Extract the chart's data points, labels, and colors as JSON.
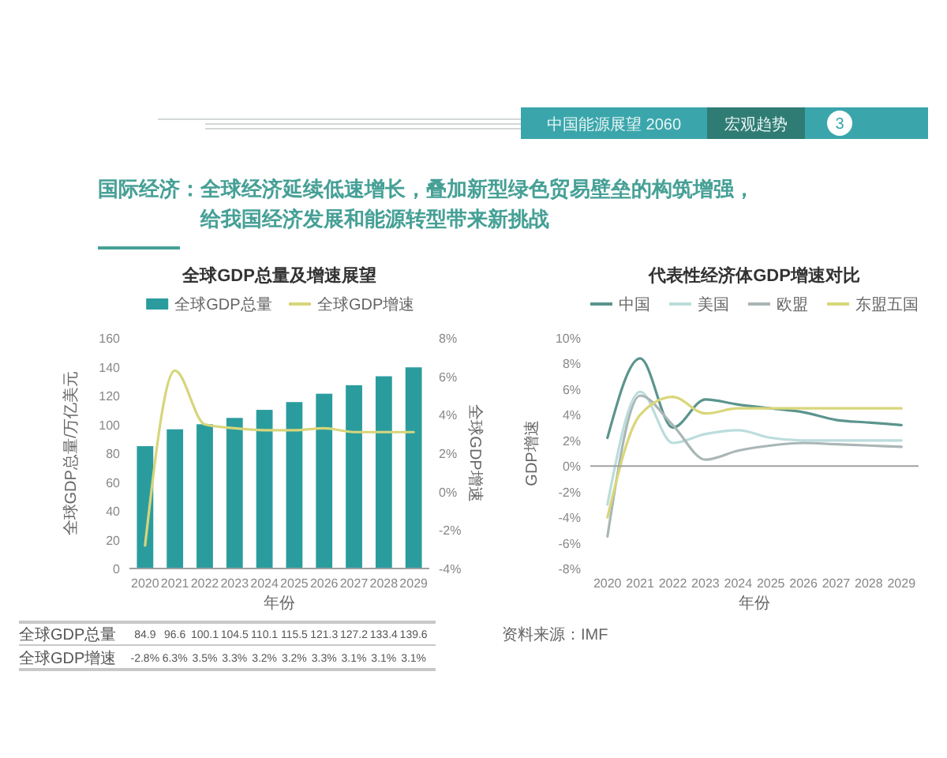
{
  "chart_data": [
    {
      "type": "other",
      "title": "国际经济：全球经济延续低速增长，叠加新型绿色贸易壁垒的构筑增强，给我国经济发展和能源转型带来新挑战",
      "annotations": [
        "中国能源展望 2060",
        "宏观趋势",
        "3"
      ]
    },
    {
      "type": "bar",
      "title": "全球GDP总量及增速展望",
      "categories": [
        "2020",
        "2021",
        "2022",
        "2023",
        "2024",
        "2025",
        "2026",
        "2027",
        "2028",
        "2029"
      ],
      "xlabel": "年份",
      "ylabel": "全球GDP总量/万亿美元",
      "y2label": "全球GDP增速",
      "ylim": [
        0,
        160
      ],
      "yticks": [
        0,
        20,
        40,
        60,
        80,
        100,
        120,
        140,
        160
      ],
      "y2lim": [
        -4,
        8
      ],
      "y2ticks": [
        {
          "value": -4,
          "label": "-4%"
        },
        {
          "value": -2,
          "label": "-2%"
        },
        {
          "value": 0,
          "label": "0%"
        },
        {
          "value": 2,
          "label": "2%"
        },
        {
          "value": 4,
          "label": "4%"
        },
        {
          "value": 6,
          "label": "6%"
        },
        {
          "value": 8,
          "label": "8%"
        }
      ],
      "legend": "top",
      "series": [
        {
          "name": "全球GDP总量",
          "type": "bar",
          "color": "#2b9c9e",
          "values": [
            84.9,
            96.6,
            100.1,
            104.5,
            110.1,
            115.5,
            121.3,
            127.2,
            133.4,
            139.6
          ],
          "value_labels": [
            "84.9",
            "96.6",
            "100.1",
            "104.5",
            "110.1",
            "115.5",
            "121.3",
            "127.2",
            "133.4",
            "139.6"
          ]
        },
        {
          "name": "全球GDP增速",
          "type": "line",
          "axis": "y2",
          "color": "#d7d57a",
          "values": [
            -2.8,
            6.3,
            3.5,
            3.3,
            3.2,
            3.2,
            3.3,
            3.1,
            3.1,
            3.1
          ],
          "value_labels": [
            "-2.8%",
            "6.3%",
            "3.5%",
            "3.3%",
            "3.2%",
            "3.2%",
            "3.3%",
            "3.1%",
            "3.1%",
            "3.1%"
          ]
        }
      ]
    },
    {
      "type": "line",
      "title": "代表性经济体GDP增速对比",
      "categories": [
        "2020",
        "2021",
        "2022",
        "2023",
        "2024",
        "2025",
        "2026",
        "2027",
        "2028",
        "2029"
      ],
      "xlabel": "年份",
      "ylabel": "GDP增速",
      "ylim": [
        -8,
        10
      ],
      "yticks": [
        {
          "value": -8,
          "label": "-8%"
        },
        {
          "value": -6,
          "label": "-6%"
        },
        {
          "value": -4,
          "label": "-4%"
        },
        {
          "value": -2,
          "label": "-2%"
        },
        {
          "value": 0,
          "label": "0%"
        },
        {
          "value": 2,
          "label": "2%"
        },
        {
          "value": 4,
          "label": "4%"
        },
        {
          "value": 6,
          "label": "6%"
        },
        {
          "value": 8,
          "label": "8%"
        },
        {
          "value": 10,
          "label": "10%"
        }
      ],
      "legend": "top",
      "annotations": [
        "资料来源：IMF"
      ],
      "series": [
        {
          "name": "中国",
          "color": "#5b948e",
          "values": [
            2.2,
            8.4,
            3.0,
            5.2,
            4.8,
            4.5,
            4.2,
            3.6,
            3.4,
            3.2
          ]
        },
        {
          "name": "美国",
          "color": "#bcdcdc",
          "values": [
            -3.0,
            5.8,
            1.8,
            2.5,
            2.8,
            2.2,
            2.0,
            2.0,
            2.0,
            2.0
          ]
        },
        {
          "name": "欧盟",
          "color": "#a9b6b5",
          "values": [
            -5.5,
            5.5,
            3.2,
            0.5,
            1.2,
            1.6,
            1.8,
            1.7,
            1.6,
            1.5
          ]
        },
        {
          "name": "东盟五国",
          "color": "#d9d67a",
          "values": [
            -4.0,
            4.0,
            5.4,
            4.1,
            4.5,
            4.5,
            4.5,
            4.5,
            4.5,
            4.5
          ]
        }
      ]
    }
  ]
}
